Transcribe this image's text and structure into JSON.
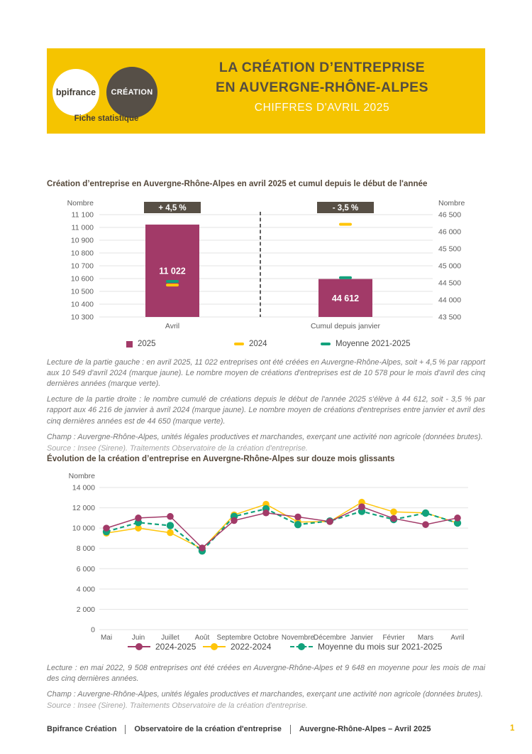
{
  "header": {
    "logo_primary": "bpifrance",
    "logo_secondary": "CRÉATION",
    "tagline": "Fiche statistique",
    "title_line1": "LA CRÉATION D’ENTREPRISE",
    "title_line2": "EN AUVERGNE-RHÔNE-ALPES",
    "subtitle": "CHIFFRES D'AVRIL 2025"
  },
  "colors": {
    "brand_yellow": "#F5C400",
    "magenta": "#A23A68",
    "yellow_series": "#FFC50A",
    "green_series": "#12A27C",
    "badge_bg": "#574F45",
    "grid": "#E3E3E3",
    "axis_text": "#5C5C5C"
  },
  "chart_data": [
    {
      "type": "bar",
      "title": "Création d’entreprise en Auvergne-Rhône-Alpes en avril 2025 et cumul depuis le début de l'année",
      "categories": [
        "Avril",
        "Cumul depuis janvier"
      ],
      "series": [
        {
          "name": "2025",
          "values": [
            11022,
            44612
          ],
          "color_key": "magenta",
          "mark": "bar"
        },
        {
          "name": "2024",
          "values": [
            10549,
            46216
          ],
          "color_key": "yellow_series",
          "mark": "dash"
        },
        {
          "name": "Moyenne 2021-2025",
          "values": [
            10578,
            44650
          ],
          "color_key": "green_series",
          "mark": "dash"
        }
      ],
      "badges": [
        "+ 4,5 %",
        "- 3,5 %"
      ],
      "axis_left": {
        "label": "Nombre",
        "min": 10300,
        "max": 11100,
        "step": 100
      },
      "axis_right": {
        "label": "Nombre",
        "min": 43500,
        "max": 46500,
        "step": 500
      },
      "grid": true,
      "legend_position": "bottom"
    },
    {
      "type": "line",
      "title": "Évolution de la création d’entreprise en Auvergne-Rhône-Alpes sur douze mois glissants",
      "categories": [
        "Mai",
        "Juin",
        "Juillet",
        "Août",
        "Septembre",
        "Octobre",
        "Novembre",
        "Décembre",
        "Janvier",
        "Février",
        "Mars",
        "Avril"
      ],
      "series": [
        {
          "name": "2024-2025",
          "values": [
            10000,
            11000,
            11150,
            8050,
            10750,
            11500,
            11100,
            10650,
            12100,
            10950,
            10350,
            11000
          ],
          "color_key": "magenta",
          "style": "solid"
        },
        {
          "name": "2022-2024",
          "values": [
            9508,
            10000,
            9550,
            7950,
            11300,
            12350,
            10600,
            10650,
            12550,
            11600,
            11500,
            10500
          ],
          "color_key": "yellow_series",
          "style": "solid"
        },
        {
          "name": "Moyenne du mois sur 2021-2025",
          "values": [
            9648,
            10550,
            10250,
            7750,
            11150,
            11900,
            10350,
            10700,
            11650,
            10850,
            11480,
            10500
          ],
          "color_key": "green_series",
          "style": "dashed"
        }
      ],
      "ylabel": "Nombre",
      "ylim": [
        0,
        14000
      ],
      "ytick_step": 2000,
      "grid": true,
      "legend_position": "bottom"
    }
  ],
  "notes1": {
    "p1": "Lecture de la partie gauche : en avril 2025, 11 022 entreprises ont été créées en Auvergne-Rhône-Alpes, soit + 4,5 % par rapport aux 10 549 d'avril 2024 (marque jaune). Le nombre moyen de créations d'entreprises est de 10 578 pour le mois d'avril des cinq dernières années (marque verte).",
    "p2": "Lecture de la partie droite : le nombre cumulé de créations depuis le début de l'année 2025 s'élève à 44 612, soit - 3,5 % par rapport aux 46 216 de janvier à avril 2024 (marque jaune). Le nombre moyen de créations d'entreprises entre janvier et avril des cinq dernières années est de 44 650 (marque verte).",
    "champ": "Champ : Auvergne-Rhône-Alpes, unités légales productives et marchandes, exerçant une activité non agricole (données brutes).",
    "source": "Source : Insee (Sirene). Traitements Observatoire de la création d'entreprise."
  },
  "notes2": {
    "lecture": "Lecture : en mai 2022, 9 508 entreprises ont été créées en Auvergne-Rhône-Alpes et 9 648 en moyenne pour les mois de mai des cinq dernières années.",
    "champ": "Champ : Auvergne-Rhône-Alpes, unités légales productives et marchandes, exerçant une activité non agricole (données brutes).",
    "source": "Source : Insee (Sirene). Traitements Observatoire de la création d'entreprise."
  },
  "footer": {
    "items": [
      "Bpifrance Création",
      "Observatoire de la création d'entreprise",
      "Auvergne-Rhône-Alpes – Avril 2025"
    ],
    "page_number": "1"
  }
}
